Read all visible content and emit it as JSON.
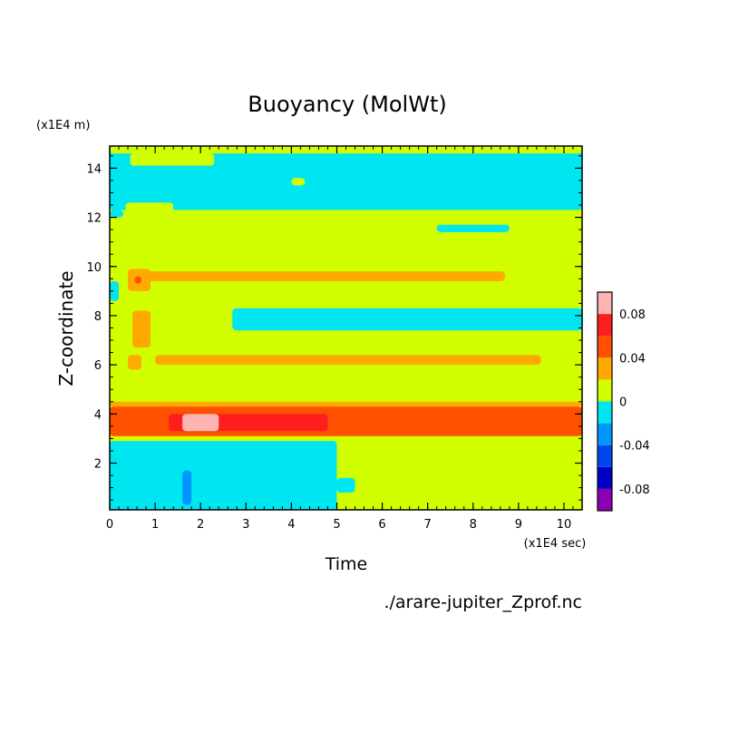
{
  "chart_data": {
    "type": "heatmap",
    "title": "Buoyancy (MolWt)",
    "xlabel": "Time",
    "ylabel": "Z-coordinate",
    "x_unit": "(x1E4 sec)",
    "y_unit": "(x1E4 m)",
    "source_label": "./arare-jupiter_Zprof.nc",
    "xlim": [
      0,
      10.4
    ],
    "ylim": [
      0.1,
      14.9
    ],
    "x_ticks": [
      "0",
      "1",
      "2",
      "3",
      "4",
      "5",
      "6",
      "7",
      "8",
      "9",
      "10"
    ],
    "y_ticks": [
      "2",
      "4",
      "6",
      "8",
      "10",
      "12",
      "14"
    ],
    "colorbar": {
      "levels": [
        -0.1,
        -0.08,
        -0.06,
        -0.04,
        -0.02,
        0,
        0.02,
        0.04,
        0.06,
        0.08,
        0.1
      ],
      "colors": [
        "#8c00b4",
        "#0000c8",
        "#0046f0",
        "#0096ff",
        "#00e6f0",
        "#d2ff00",
        "#ffaa00",
        "#ff5000",
        "#ff1e1e",
        "#ffb4b4"
      ],
      "tick_labels": [
        "-0.08",
        "-0.04",
        "0",
        "0.04",
        "0.08"
      ],
      "tick_values": [
        -0.08,
        -0.04,
        0,
        0.04,
        0.08
      ]
    },
    "background_level": 0.01,
    "bands": [
      {
        "x": [
          0,
          10.4
        ],
        "y": [
          12.3,
          14.9
        ],
        "value": -0.01
      },
      {
        "x": [
          0,
          10.4
        ],
        "y": [
          14.6,
          14.9
        ],
        "value": 0.01
      },
      {
        "x": [
          0.45,
          2.3
        ],
        "y": [
          14.1,
          14.6
        ],
        "value": 0.01
      },
      {
        "x": [
          0,
          0.3
        ],
        "y": [
          12.0,
          12.3
        ],
        "value": -0.01
      },
      {
        "x": [
          0.35,
          1.4
        ],
        "y": [
          12.0,
          12.6
        ],
        "value": 0.01
      },
      {
        "x": [
          7.2,
          8.8
        ],
        "y": [
          11.4,
          11.7
        ],
        "value": -0.01
      },
      {
        "x": [
          4.0,
          4.3
        ],
        "y": [
          13.3,
          13.6
        ],
        "value": 0.01
      },
      {
        "x": [
          0.6,
          8.7
        ],
        "y": [
          9.4,
          9.8
        ],
        "value": 0.03
      },
      {
        "x": [
          0.4,
          0.9
        ],
        "y": [
          9.0,
          9.9
        ],
        "value": 0.03
      },
      {
        "x": [
          0.55,
          0.7
        ],
        "y": [
          9.3,
          9.6
        ],
        "value": 0.05
      },
      {
        "x": [
          0,
          0.2
        ],
        "y": [
          8.6,
          9.4
        ],
        "value": -0.01
      },
      {
        "x": [
          2.7,
          10.4
        ],
        "y": [
          7.4,
          8.3
        ],
        "value": -0.01
      },
      {
        "x": [
          0.5,
          0.9
        ],
        "y": [
          6.7,
          8.2
        ],
        "value": 0.03
      },
      {
        "x": [
          0.4,
          0.7
        ],
        "y": [
          5.8,
          6.4
        ],
        "value": 0.03
      },
      {
        "x": [
          1.0,
          9.5
        ],
        "y": [
          6.0,
          6.4
        ],
        "value": 0.03
      },
      {
        "x": [
          0,
          10.4
        ],
        "y": [
          4.3,
          4.5
        ],
        "value": 0.03
      },
      {
        "x": [
          0,
          10.4
        ],
        "y": [
          3.1,
          4.3
        ],
        "value": 0.05
      },
      {
        "x": [
          1.3,
          4.8
        ],
        "y": [
          3.3,
          4.0
        ],
        "value": 0.07
      },
      {
        "x": [
          0.8,
          1.3
        ],
        "y": [
          3.4,
          3.9
        ],
        "value": 0.05
      },
      {
        "x": [
          1.6,
          2.4
        ],
        "y": [
          3.3,
          4.0
        ],
        "value": 0.09
      },
      {
        "x": [
          0,
          5.0
        ],
        "y": [
          0.1,
          2.9
        ],
        "value": -0.01
      },
      {
        "x": [
          5.0,
          5.4
        ],
        "y": [
          0.8,
          1.4
        ],
        "value": -0.01
      },
      {
        "x": [
          1.6,
          1.8
        ],
        "y": [
          0.3,
          1.7
        ],
        "value": -0.03
      }
    ]
  }
}
